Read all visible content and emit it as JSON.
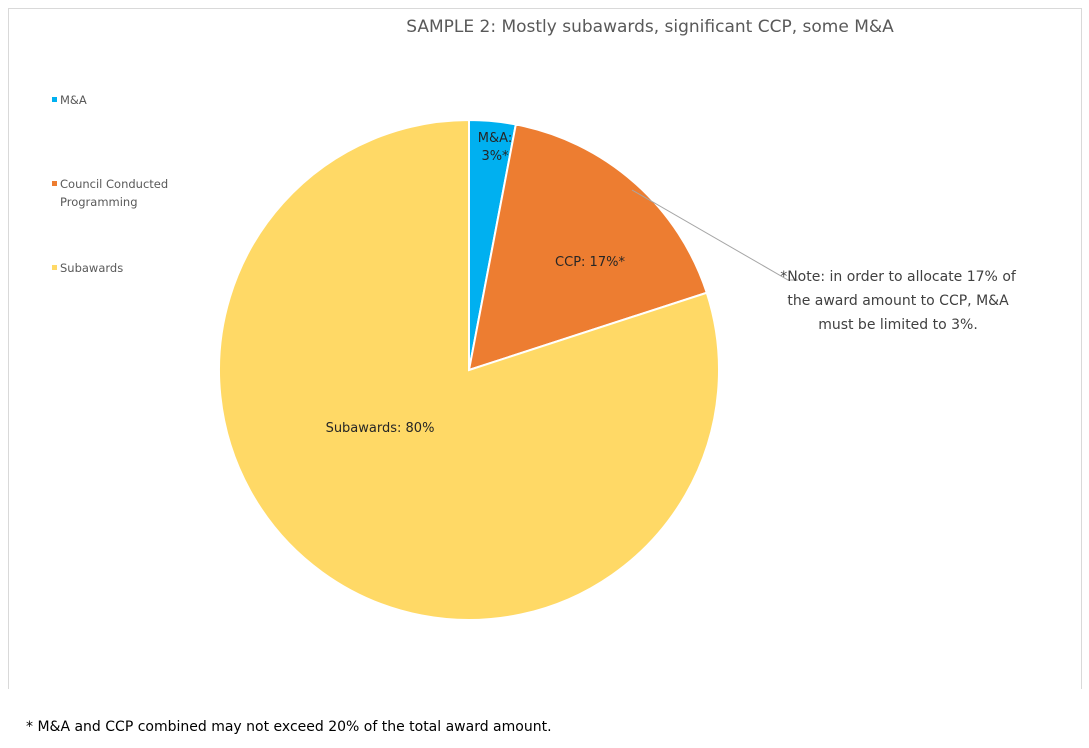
{
  "chart_data": {
    "type": "pie",
    "title": "SAMPLE 2: Mostly subawards, significant CCP, some M&A",
    "categories": [
      "M&A",
      "Council Conducted Programming",
      "Subawards"
    ],
    "values": [
      3,
      17,
      80
    ],
    "value_labels": [
      "M&A: 3%*",
      "CCP: 17%*",
      "Subawards: 80%"
    ],
    "colors": [
      "#00b0f0",
      "#ed7d31",
      "#ffd966"
    ],
    "legend": "left",
    "annotation": "*Note: in order to allocate 17% of the award amount to CCP, M&A must be limited to 3%.",
    "footnote": "* M&A and CCP combined may not exceed 20% of the total award amount."
  }
}
